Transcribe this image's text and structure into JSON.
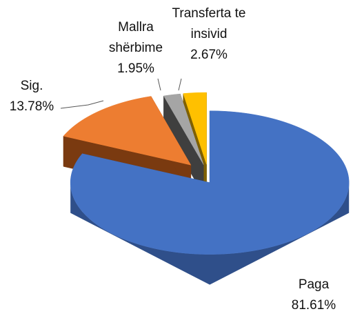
{
  "chart_data": {
    "type": "pie",
    "categories": [
      "Paga",
      "Sig.",
      "Mallra shërbime",
      "Transferta te insivid"
    ],
    "values": [
      81.61,
      13.78,
      1.95,
      2.67
    ],
    "value_labels": [
      "81.61%",
      "13.78%",
      "1.95%",
      "2.67%"
    ],
    "colors": [
      "#4472c4",
      "#ed7d31",
      "#a5a5a5",
      "#ffc000"
    ],
    "side_colors": [
      "#2f4f8a",
      "#7a3a10",
      "#3f3f3f",
      "#7f6000"
    ]
  }
}
